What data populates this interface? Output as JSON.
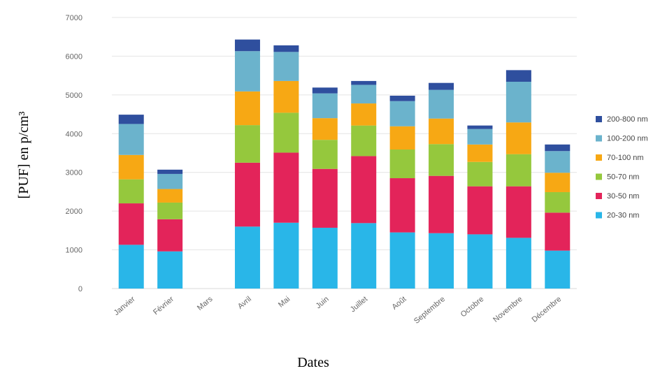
{
  "chart_data": {
    "type": "bar",
    "stacked": true,
    "title": "",
    "xlabel": "Dates",
    "ylabel": "[PUF] en p/cm³",
    "ylim": [
      0,
      7000
    ],
    "yticks": [
      "0",
      "1000",
      "2000",
      "3000",
      "4000",
      "5000",
      "6000",
      "7000"
    ],
    "grid": true,
    "legend_position": "right",
    "categories": [
      "Janvier",
      "Février",
      "Mars",
      "Avril",
      "Mai",
      "Juin",
      "Juillet",
      "Août",
      "Septembre",
      "Octobre",
      "Novembre",
      "Décembre"
    ],
    "series": [
      {
        "name": "20-30 nm",
        "color": "#29b6e8",
        "values": [
          1130,
          960,
          0,
          1600,
          1700,
          1570,
          1690,
          1450,
          1430,
          1400,
          1310,
          980
        ]
      },
      {
        "name": "30-50 nm",
        "color": "#e3245a",
        "values": [
          1070,
          830,
          0,
          1650,
          1810,
          1520,
          1730,
          1400,
          1480,
          1240,
          1330,
          980
        ]
      },
      {
        "name": "50-70 nm",
        "color": "#95c83d",
        "values": [
          620,
          430,
          0,
          970,
          1030,
          750,
          790,
          740,
          820,
          630,
          830,
          530
        ]
      },
      {
        "name": "70-100 nm",
        "color": "#f7a814",
        "values": [
          630,
          350,
          0,
          870,
          820,
          560,
          570,
          600,
          660,
          450,
          820,
          500
        ]
      },
      {
        "name": "100-200 nm",
        "color": "#6bb3cc",
        "values": [
          800,
          390,
          0,
          1040,
          750,
          640,
          480,
          650,
          740,
          400,
          1050,
          560
        ]
      },
      {
        "name": "200-800 nm",
        "color": "#2f4f9e",
        "values": [
          240,
          110,
          0,
          300,
          170,
          150,
          100,
          140,
          180,
          90,
          300,
          170
        ]
      }
    ]
  }
}
